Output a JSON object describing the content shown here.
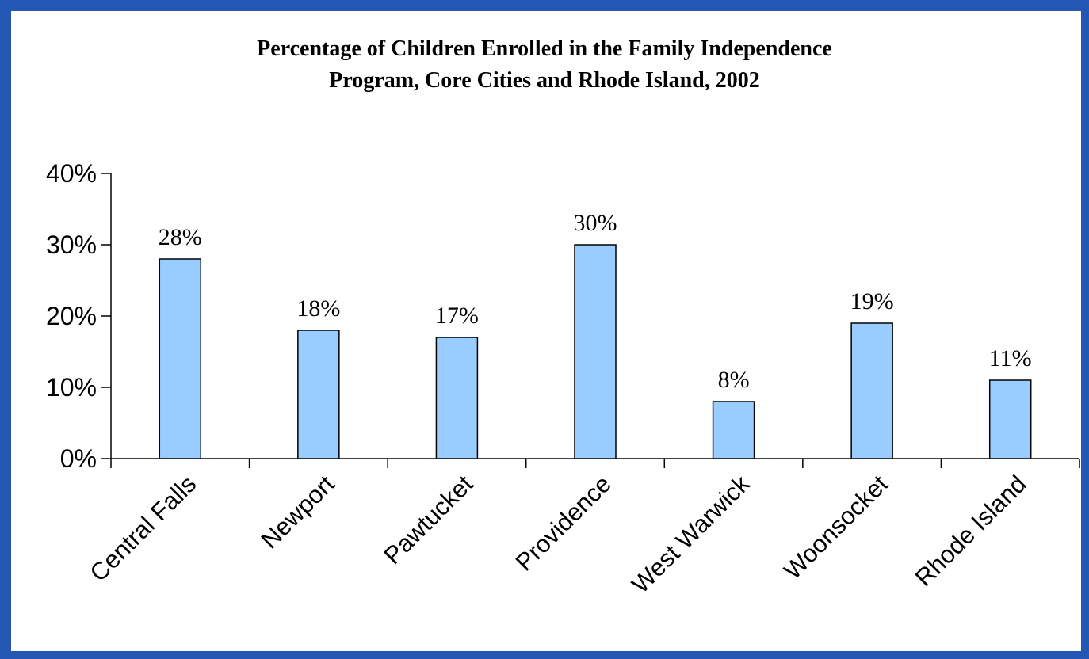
{
  "chart_data": {
    "type": "bar",
    "title_lines": [
      "Percentage of Children Enrolled in the Family Independence",
      "Program, Core Cities and Rhode Island, 2002"
    ],
    "categories": [
      "Central Falls",
      "Newport",
      "Pawtucket",
      "Providence",
      "West Warwick",
      "Woonsocket",
      "Rhode Island"
    ],
    "values": [
      28,
      18,
      17,
      30,
      8,
      19,
      11
    ],
    "data_labels": [
      "28%",
      "18%",
      "17%",
      "30%",
      "8%",
      "19%",
      "11%"
    ],
    "y_ticks": [
      0,
      10,
      20,
      30,
      40
    ],
    "y_tick_labels": [
      "0%",
      "10%",
      "20%",
      "30%",
      "40%"
    ],
    "ylim": [
      0,
      40
    ],
    "xlabel": "",
    "ylabel": "",
    "grid": false,
    "legend": "none",
    "bar_color": "#99ccff",
    "frame_color": "#2456b3"
  }
}
